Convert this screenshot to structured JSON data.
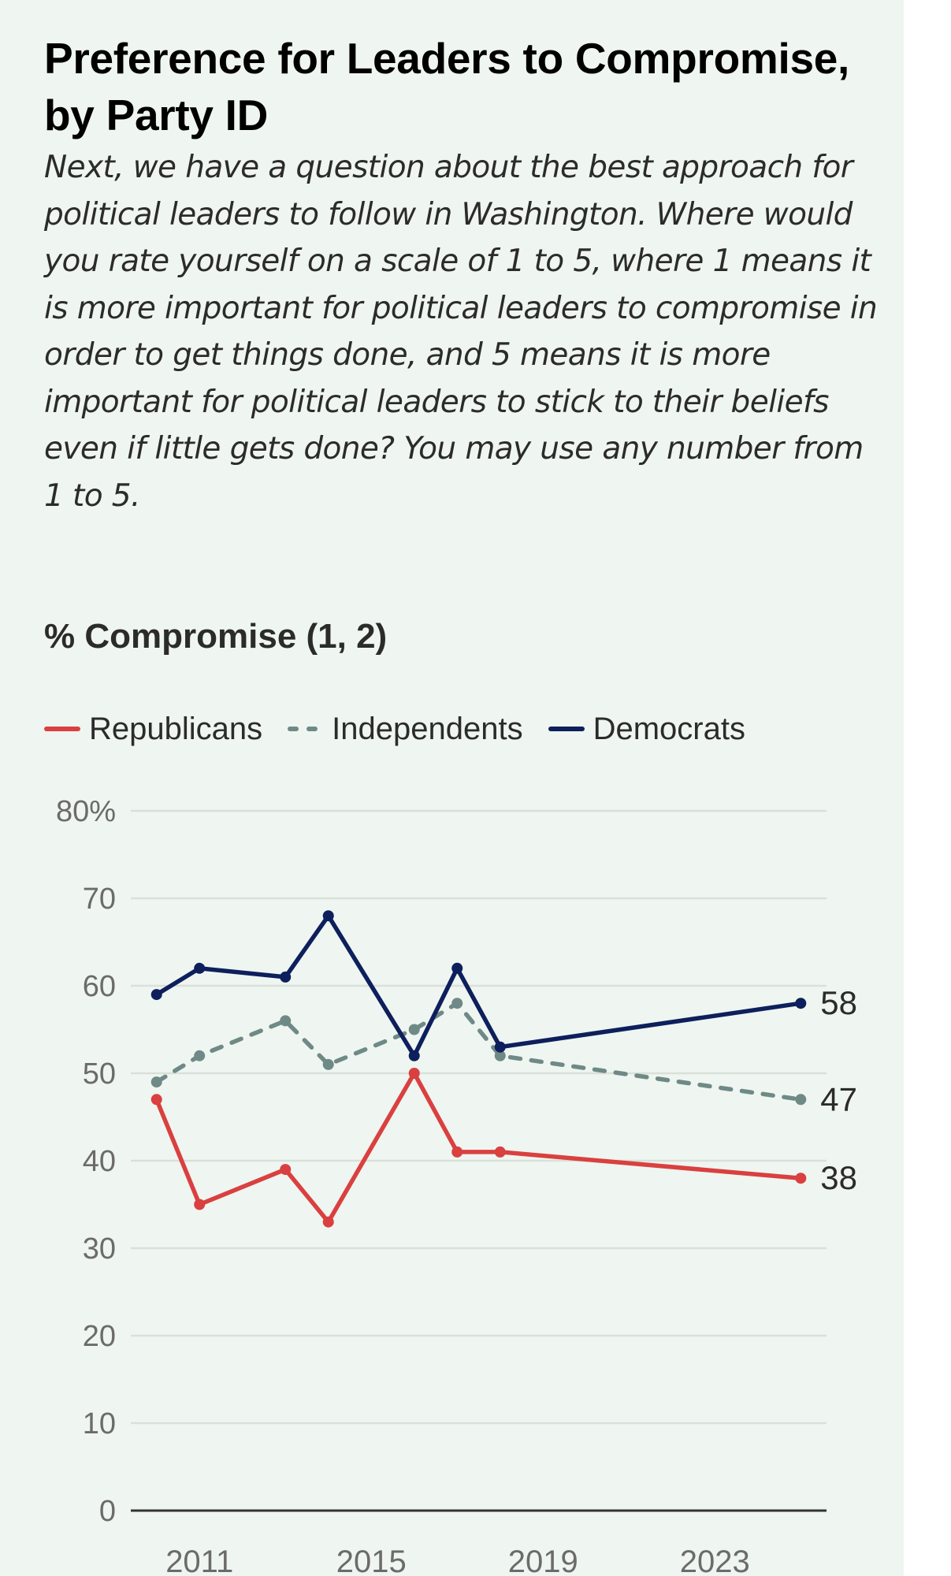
{
  "header": {
    "title": "Preference for Leaders to Compromise, by Party ID",
    "question": "Next, we have a question about the best approach for political leaders to follow in Washington. Where would you rate yourself on a scale of 1 to 5, where 1 means it is more important for political leaders to compromise in order to get things done, and 5 means it is more important for political leaders to stick to their beliefs even if little gets done? You may use any number from 1 to 5.",
    "measure_label": "% Compromise (1, 2)"
  },
  "colors": {
    "republicans": "#d9403f",
    "independents": "#6f8a86",
    "democrats": "#0d1f5c",
    "background": "#eff5f0",
    "gridline": "#d9e0da",
    "axis": "#333333"
  },
  "chart_data": {
    "type": "line",
    "title": "Preference for Leaders to Compromise, by Party ID",
    "subtitle": "% Compromise (1, 2)",
    "xlabel": "",
    "ylabel": "",
    "x": [
      2010,
      2011,
      2013,
      2014,
      2016,
      2017,
      2018,
      2025
    ],
    "xlim": [
      2009.4,
      2025.6
    ],
    "ylim": [
      0,
      80
    ],
    "y_ticks": [
      0,
      10,
      20,
      30,
      40,
      50,
      60,
      70,
      80
    ],
    "y_tick_labels": [
      "0",
      "10",
      "20",
      "30",
      "40",
      "50",
      "60",
      "70",
      "80%"
    ],
    "x_ticks": [
      2011,
      2015,
      2019,
      2023
    ],
    "x_tick_labels": [
      "2011",
      "2015",
      "2019",
      "2023"
    ],
    "grid": true,
    "legend_position": "top-left",
    "series": [
      {
        "name": "Republicans",
        "key": "republicans",
        "style": "solid",
        "values": [
          47,
          35,
          39,
          33,
          50,
          41,
          41,
          38
        ],
        "end_label": "38"
      },
      {
        "name": "Independents",
        "key": "independents",
        "style": "dashed",
        "values": [
          49,
          52,
          56,
          51,
          55,
          58,
          52,
          47
        ],
        "end_label": "47"
      },
      {
        "name": "Democrats",
        "key": "democrats",
        "style": "solid",
        "values": [
          59,
          62,
          61,
          68,
          52,
          62,
          53,
          58
        ],
        "end_label": "58"
      }
    ]
  }
}
